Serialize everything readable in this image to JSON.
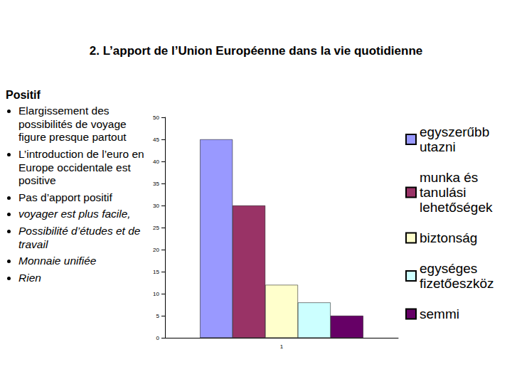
{
  "title": "2. L’apport de l’Union Européenne dans la vie quotidienne",
  "text_left": {
    "heading": "Positif",
    "bullets": [
      "Elargissement des possibilités de voyage figure presque partout",
      "L’introduction de l’euro en Europe occidentale est positive",
      "Pas d’apport positif"
    ],
    "bullets_italic": [
      "voyager est plus facile,",
      "Possibilité d’études et de travail",
      "Monnaie unifiée",
      "Rien"
    ]
  },
  "chart_data": {
    "type": "bar",
    "categories": [
      "1"
    ],
    "series": [
      {
        "name": "egyszerűbb utazni",
        "color": "#9999ff",
        "values": [
          45
        ]
      },
      {
        "name": "munka és tanulási lehetőségek",
        "color": "#993366",
        "values": [
          30
        ]
      },
      {
        "name": "biztonság",
        "color": "#ffffcc",
        "values": [
          12
        ]
      },
      {
        "name": "egységes fizetőeszköz",
        "color": "#ccffff",
        "values": [
          8
        ]
      },
      {
        "name": "semmi",
        "color": "#660066",
        "values": [
          5
        ]
      }
    ],
    "ylim": [
      0,
      50
    ],
    "yticks": [
      0,
      5,
      10,
      15,
      20,
      25,
      30,
      35,
      40,
      45,
      50
    ],
    "grid": false,
    "legend": "right"
  }
}
